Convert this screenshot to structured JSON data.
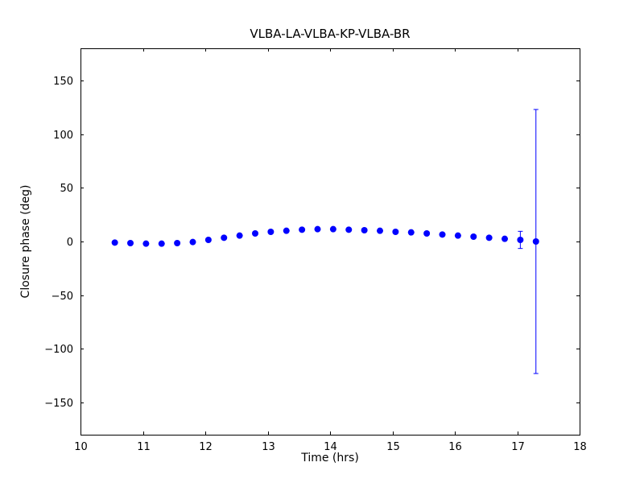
{
  "chart_data": {
    "type": "scatter",
    "title": "VLBA-LA-VLBA-KP-VLBA-BR",
    "xlabel": "Time (hrs)",
    "ylabel": "Closure phase (deg)",
    "xlim": [
      10,
      18
    ],
    "ylim": [
      -180,
      180
    ],
    "xticks": [
      10,
      11,
      12,
      13,
      14,
      15,
      16,
      17,
      18
    ],
    "xtick_labels": [
      "10",
      "11",
      "12",
      "13",
      "14",
      "15",
      "16",
      "17",
      "18"
    ],
    "yticks": [
      -150,
      -100,
      -50,
      0,
      50,
      100,
      150
    ],
    "ytick_labels": [
      "−150",
      "−100",
      "−50",
      "0",
      "50",
      "100",
      "150"
    ],
    "grid": false,
    "legend_visible": false,
    "marker_color": "#0000ff",
    "errorbar_color": "#0000ff",
    "series_name": "closure-phase",
    "x": [
      10.55,
      10.8,
      11.05,
      11.3,
      11.55,
      11.8,
      12.05,
      12.3,
      12.55,
      12.8,
      13.05,
      13.3,
      13.55,
      13.8,
      14.05,
      14.3,
      14.55,
      14.8,
      15.05,
      15.3,
      15.55,
      15.8,
      16.05,
      16.3,
      16.55,
      16.8,
      17.05,
      17.3
    ],
    "y": [
      -1.0,
      -1.5,
      -2.0,
      -2.0,
      -1.5,
      -0.5,
      1.5,
      3.5,
      5.5,
      7.5,
      9.0,
      10.0,
      11.0,
      11.5,
      11.5,
      11.0,
      10.5,
      10.0,
      9.0,
      8.5,
      7.5,
      6.5,
      5.5,
      4.5,
      3.5,
      2.5,
      1.5,
      0.0
    ],
    "yerr": [
      0.5,
      0.5,
      0.5,
      0.5,
      0.5,
      0.5,
      0.5,
      0.5,
      0.5,
      0.5,
      0.5,
      0.5,
      0.5,
      0.5,
      0.5,
      0.5,
      0.5,
      0.5,
      0.5,
      0.5,
      0.5,
      0.5,
      0.5,
      0.5,
      0.5,
      1.0,
      8.0,
      123.0
    ]
  }
}
